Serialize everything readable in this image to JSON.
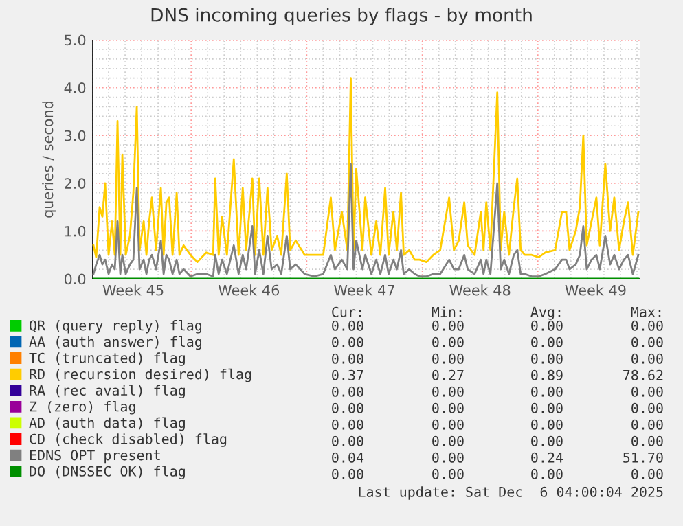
{
  "chart_data": {
    "type": "line",
    "title": "DNS incoming queries by flags - by month",
    "ylabel": "queries / second",
    "x": [
      "2025-11-04T02:00",
      "2025-11-04T06:00",
      "2025-11-04T11:00",
      "2025-11-04T15:00",
      "2025-11-04T19:00",
      "2025-11-05T00:00",
      "2025-11-05T05:00",
      "2025-11-05T09:00",
      "2025-11-05T13:00",
      "2025-11-05T17:00",
      "2025-11-05T20:00",
      "2025-11-06T01:00",
      "2025-11-06T07:00",
      "2025-11-06T12:00",
      "2025-11-06T17:00",
      "2025-11-06T21:00",
      "2025-11-07T03:00",
      "2025-11-07T07:00",
      "2025-11-07T11:00",
      "2025-11-07T15:00",
      "2025-11-07T21:00",
      "2025-11-08T04:00",
      "2025-11-08T08:00",
      "2025-11-08T12:00",
      "2025-11-08T16:00",
      "2025-11-08T21:00",
      "2025-11-09T03:00",
      "2025-11-09T07:00",
      "2025-11-09T13:00",
      "2025-11-09T23:00",
      "2025-11-10T09:00",
      "2025-11-10T22:00",
      "2025-11-11T08:00",
      "2025-11-11T11:00",
      "2025-11-11T16:00",
      "2025-11-11T21:00",
      "2025-11-12T04:00",
      "2025-11-12T14:00",
      "2025-11-12T21:00",
      "2025-11-13T03:00",
      "2025-11-13T08:00",
      "2025-11-13T17:00",
      "2025-11-13T21:00",
      "2025-11-14T03:00",
      "2025-11-14T09:00",
      "2025-11-14T15:00",
      "2025-11-14T21:00",
      "2025-11-15T05:00",
      "2025-11-15T11:00",
      "2025-11-15T19:00",
      "2025-11-16T00:00",
      "2025-11-16T08:00",
      "2025-11-16T21:00",
      "2025-11-17T11:00",
      "2025-11-18T00:00",
      "2025-11-18T11:00",
      "2025-11-18T17:00",
      "2025-11-19T03:00",
      "2025-11-19T11:00",
      "2025-11-19T16:00",
      "2025-11-19T20:00",
      "2025-11-20T00:00",
      "2025-11-20T09:00",
      "2025-11-20T13:00",
      "2025-11-20T22:00",
      "2025-11-21T05:00",
      "2025-11-21T11:00",
      "2025-11-21T18:00",
      "2025-11-21T23:00",
      "2025-11-22T06:00",
      "2025-11-22T11:00",
      "2025-11-22T17:00",
      "2025-11-22T21:00",
      "2025-11-23T05:00",
      "2025-11-23T13:00",
      "2025-11-23T20:00",
      "2025-11-24T06:00",
      "2025-11-24T16:00",
      "2025-11-25T02:00",
      "2025-11-25T15:00",
      "2025-11-25T22:00",
      "2025-11-26T05:00",
      "2025-11-26T13:00",
      "2025-11-26T18:00",
      "2025-11-27T04:00",
      "2025-11-27T13:00",
      "2025-11-27T17:00",
      "2025-11-27T21:00",
      "2025-11-28T03:00",
      "2025-11-28T13:00",
      "2025-11-28T18:00",
      "2025-11-28T23:00",
      "2025-11-29T06:00",
      "2025-11-29T13:00",
      "2025-11-29T18:00",
      "2025-11-29T23:00",
      "2025-11-30T05:00",
      "2025-11-30T15:00",
      "2025-12-01T01:00",
      "2025-12-01T11:00",
      "2025-12-02T01:00",
      "2025-12-02T11:00",
      "2025-12-02T17:00",
      "2025-12-02T22:00",
      "2025-12-03T07:00",
      "2025-12-03T13:00",
      "2025-12-03T18:00",
      "2025-12-03T23:00",
      "2025-12-04T06:00",
      "2025-12-04T13:00",
      "2025-12-04T18:00",
      "2025-12-05T02:00",
      "2025-12-05T09:00",
      "2025-12-05T15:00",
      "2025-12-05T22:00",
      "2025-12-06T05:00",
      "2025-12-06T11:00",
      "2025-12-06T18:00",
      "2025-12-07T02:00"
    ],
    "series": [
      {
        "name": "QR (query reply) flag",
        "color": "#00cc00",
        "values": [
          null,
          null,
          null,
          null,
          null,
          null,
          null,
          null,
          null,
          null,
          null,
          null,
          null,
          null,
          null,
          null,
          null,
          null,
          null,
          null,
          null,
          null,
          null,
          null,
          null,
          null,
          null,
          null,
          null,
          null,
          null,
          null,
          null,
          null,
          null,
          null,
          null,
          null,
          null,
          null,
          null,
          null,
          null,
          null,
          null,
          null,
          null,
          null,
          null,
          null,
          null,
          null,
          null,
          null,
          null,
          null,
          null,
          null,
          null,
          null,
          null,
          null,
          null,
          null,
          null,
          null,
          null,
          null,
          null,
          null,
          null,
          null,
          null,
          null,
          null,
          null,
          null,
          null,
          null,
          null,
          null,
          null,
          null,
          null,
          null,
          null,
          null,
          null,
          null,
          null,
          null,
          null,
          null,
          null,
          null,
          null,
          null,
          null,
          null,
          null,
          null,
          null,
          null,
          null,
          null,
          null,
          null,
          null,
          null,
          null,
          null,
          null,
          null,
          null,
          null,
          null,
          null,
          null,
          null
        ]
      },
      {
        "name": "AA (auth answer) flag",
        "color": "#0066b3",
        "values": [
          null,
          null,
          null,
          null,
          null,
          null,
          null,
          null,
          null,
          null,
          null,
          null,
          null,
          null,
          null,
          null,
          null,
          null,
          null,
          null,
          null,
          null,
          null,
          null,
          null,
          null,
          null,
          null,
          null,
          null,
          null,
          null,
          null,
          null,
          null,
          null,
          null,
          null,
          null,
          null,
          null,
          null,
          null,
          null,
          null,
          null,
          null,
          null,
          null,
          null,
          null,
          null,
          null,
          null,
          null,
          null,
          null,
          null,
          null,
          null,
          null,
          null,
          null,
          null,
          null,
          null,
          null,
          null,
          null,
          null,
          null,
          null,
          null,
          null,
          null,
          null,
          null,
          null,
          null,
          null,
          null,
          null,
          null,
          null,
          null,
          null,
          null,
          null,
          null,
          null,
          null,
          null,
          null,
          null,
          null,
          null,
          null,
          null,
          null,
          null,
          null,
          null,
          null,
          null,
          null,
          null,
          null,
          null,
          null,
          null,
          null,
          null,
          null,
          null,
          null,
          null,
          null,
          null,
          null
        ]
      },
      {
        "name": "TC (truncated) flag",
        "color": "#ff8000",
        "values": [
          null,
          null,
          null,
          null,
          null,
          null,
          null,
          null,
          null,
          null,
          null,
          null,
          null,
          null,
          null,
          null,
          null,
          null,
          null,
          null,
          null,
          null,
          null,
          null,
          null,
          null,
          null,
          null,
          null,
          null,
          null,
          null,
          null,
          null,
          null,
          null,
          null,
          null,
          null,
          null,
          null,
          null,
          null,
          null,
          null,
          null,
          null,
          null,
          null,
          null,
          null,
          null,
          null,
          null,
          null,
          null,
          null,
          null,
          null,
          null,
          null,
          null,
          null,
          null,
          null,
          null,
          null,
          null,
          null,
          null,
          null,
          null,
          null,
          null,
          null,
          null,
          null,
          null,
          null,
          null,
          null,
          null,
          null,
          null,
          null,
          null,
          null,
          null,
          null,
          null,
          null,
          null,
          null,
          null,
          null,
          null,
          null,
          null,
          null,
          null,
          null,
          null,
          null,
          null,
          null,
          null,
          null,
          null,
          null,
          null,
          null,
          null,
          null,
          null,
          null,
          null,
          null,
          null,
          null
        ]
      },
      {
        "name": "RD (recursion desired) flag",
        "color": "#ffcc00",
        "values": [
          0.7,
          0.45,
          1.5,
          1.3,
          2.0,
          0.5,
          1.2,
          0.5,
          3.3,
          0.5,
          2.6,
          0.5,
          0.9,
          1.8,
          3.6,
          0.6,
          1.2,
          0.5,
          1.2,
          1.7,
          0.6,
          1.9,
          0.5,
          1.6,
          1.7,
          0.5,
          1.8,
          0.5,
          0.7,
          0.5,
          0.35,
          0.55,
          0.5,
          2.1,
          0.5,
          1.3,
          0.5,
          2.5,
          0.5,
          1.9,
          0.6,
          2.1,
          0.5,
          2.1,
          0.5,
          1.9,
          0.6,
          0.9,
          0.5,
          2.2,
          0.6,
          0.8,
          0.5,
          0.5,
          0.5,
          1.7,
          0.6,
          1.4,
          0.6,
          4.2,
          0.6,
          2.3,
          0.6,
          1.7,
          0.5,
          1.2,
          0.5,
          1.9,
          0.5,
          1.4,
          0.6,
          1.8,
          0.5,
          0.6,
          0.4,
          0.4,
          0.35,
          0.5,
          0.6,
          1.7,
          0.6,
          0.8,
          1.6,
          0.7,
          0.5,
          1.4,
          0.6,
          1.6,
          0.6,
          3.9,
          0.6,
          1.4,
          0.5,
          1.5,
          2.1,
          0.6,
          0.5,
          0.5,
          0.45,
          0.55,
          0.6,
          1.4,
          1.4,
          0.6,
          1.0,
          1.5,
          3.0,
          0.7,
          1.2,
          1.7,
          0.7,
          2.4,
          1.0,
          1.7,
          0.6,
          1.2,
          1.6,
          0.5,
          1.4
        ]
      },
      {
        "name": "RA (rec avail) flag",
        "color": "#330099",
        "values": [
          null,
          null,
          null,
          null,
          null,
          null,
          null,
          null,
          null,
          null,
          null,
          null,
          null,
          null,
          null,
          null,
          null,
          null,
          null,
          null,
          null,
          null,
          null,
          null,
          null,
          null,
          null,
          null,
          null,
          null,
          null,
          null,
          null,
          null,
          null,
          null,
          null,
          null,
          null,
          null,
          null,
          null,
          null,
          null,
          null,
          null,
          null,
          null,
          null,
          null,
          null,
          null,
          null,
          null,
          null,
          null,
          null,
          null,
          null,
          null,
          null,
          null,
          null,
          null,
          null,
          null,
          null,
          null,
          null,
          null,
          null,
          null,
          null,
          null,
          null,
          null,
          null,
          null,
          null,
          null,
          null,
          null,
          null,
          null,
          null,
          null,
          null,
          null,
          null,
          null,
          null,
          null,
          null,
          null,
          null,
          null,
          null,
          null,
          null,
          null,
          null,
          null,
          null,
          null,
          null,
          null,
          null,
          null,
          null,
          null,
          null,
          null,
          null,
          null,
          null,
          null,
          null,
          null,
          null
        ]
      },
      {
        "name": "Z (zero) flag",
        "color": "#990099",
        "values": [
          null,
          null,
          null,
          null,
          null,
          null,
          null,
          null,
          null,
          null,
          null,
          null,
          null,
          null,
          null,
          null,
          null,
          null,
          null,
          null,
          null,
          null,
          null,
          null,
          null,
          null,
          null,
          null,
          null,
          null,
          null,
          null,
          null,
          null,
          null,
          null,
          null,
          null,
          null,
          null,
          null,
          null,
          null,
          null,
          null,
          null,
          null,
          null,
          null,
          null,
          null,
          null,
          null,
          null,
          null,
          null,
          null,
          null,
          null,
          null,
          null,
          null,
          null,
          null,
          null,
          null,
          null,
          null,
          null,
          null,
          null,
          null,
          null,
          null,
          null,
          null,
          null,
          null,
          null,
          null,
          null,
          null,
          null,
          null,
          null,
          null,
          null,
          null,
          null,
          null,
          null,
          null,
          null,
          null,
          null,
          null,
          null,
          null,
          null,
          null,
          null,
          null,
          null,
          null,
          null,
          null,
          null,
          null,
          null,
          null,
          null,
          null,
          null,
          null,
          null,
          null,
          null,
          null,
          null
        ]
      },
      {
        "name": "AD (auth data) flag",
        "color": "#ccff00",
        "values": [
          null,
          null,
          null,
          null,
          null,
          null,
          null,
          null,
          null,
          null,
          null,
          null,
          null,
          null,
          null,
          null,
          null,
          null,
          null,
          null,
          null,
          null,
          null,
          null,
          null,
          null,
          null,
          null,
          null,
          null,
          null,
          null,
          null,
          null,
          null,
          null,
          null,
          null,
          null,
          null,
          null,
          null,
          null,
          null,
          null,
          null,
          null,
          null,
          null,
          null,
          null,
          null,
          null,
          null,
          null,
          null,
          null,
          null,
          null,
          null,
          null,
          null,
          null,
          null,
          null,
          null,
          null,
          null,
          null,
          null,
          null,
          null,
          null,
          null,
          null,
          null,
          null,
          null,
          null,
          null,
          null,
          null,
          null,
          null,
          null,
          null,
          null,
          null,
          null,
          null,
          null,
          null,
          null,
          null,
          null,
          null,
          null,
          null,
          null,
          null,
          null,
          null,
          null,
          null,
          null,
          null,
          null,
          null,
          null,
          null,
          null,
          null,
          null,
          null,
          null,
          null,
          null,
          null,
          null
        ]
      },
      {
        "name": "CD (check disabled) flag",
        "color": "#ff0000",
        "values": [
          null,
          null,
          null,
          null,
          null,
          null,
          null,
          null,
          null,
          null,
          null,
          null,
          null,
          null,
          null,
          null,
          null,
          null,
          null,
          null,
          null,
          null,
          null,
          null,
          null,
          null,
          null,
          null,
          null,
          null,
          null,
          null,
          null,
          null,
          null,
          null,
          null,
          null,
          null,
          null,
          null,
          null,
          null,
          null,
          null,
          null,
          null,
          null,
          null,
          null,
          null,
          null,
          null,
          null,
          null,
          null,
          null,
          null,
          null,
          null,
          null,
          null,
          null,
          null,
          null,
          null,
          null,
          null,
          null,
          null,
          null,
          null,
          null,
          null,
          null,
          null,
          null,
          null,
          null,
          null,
          null,
          null,
          null,
          null,
          null,
          null,
          null,
          null,
          null,
          null,
          null,
          null,
          null,
          null,
          null,
          null,
          null,
          null,
          null,
          null,
          null,
          null,
          null,
          null,
          null,
          null,
          null,
          null,
          null,
          null,
          null,
          null,
          null,
          null,
          null,
          null,
          null,
          null,
          null
        ]
      },
      {
        "name": "EDNS OPT present",
        "color": "#808080",
        "values": [
          0.1,
          0.3,
          0.5,
          0.3,
          0.4,
          0.1,
          0.3,
          0.2,
          1.2,
          0.1,
          0.5,
          0.1,
          0.3,
          0.4,
          1.9,
          0.2,
          0.4,
          0.1,
          0.4,
          0.5,
          0.2,
          0.8,
          0.1,
          0.5,
          0.4,
          0.1,
          0.4,
          0.1,
          0.2,
          0.05,
          0.1,
          0.1,
          0.05,
          0.5,
          0.1,
          0.4,
          0.1,
          0.7,
          0.1,
          0.5,
          0.2,
          1.1,
          0.1,
          0.6,
          0.1,
          0.9,
          0.2,
          0.3,
          0.1,
          0.9,
          0.2,
          0.3,
          0.1,
          0.05,
          0.1,
          0.5,
          0.2,
          0.4,
          0.2,
          2.4,
          0.2,
          0.8,
          0.2,
          0.5,
          0.1,
          0.4,
          0.1,
          0.5,
          0.1,
          0.4,
          0.2,
          0.6,
          0.1,
          0.2,
          0.1,
          0.05,
          0.05,
          0.1,
          0.1,
          0.4,
          0.2,
          0.2,
          0.5,
          0.2,
          0.1,
          0.4,
          0.1,
          0.4,
          0.1,
          2.0,
          0.2,
          0.4,
          0.1,
          0.5,
          0.6,
          0.1,
          0.1,
          0.05,
          0.05,
          0.1,
          0.2,
          0.4,
          0.4,
          0.2,
          0.3,
          0.5,
          1.1,
          0.2,
          0.4,
          0.5,
          0.2,
          0.9,
          0.3,
          0.5,
          0.2,
          0.4,
          0.5,
          0.1,
          0.5
        ]
      },
      {
        "name": "DO (DNSSEC OK) flag",
        "color": "#008f00",
        "values": [
          0,
          0,
          0,
          0,
          0,
          0,
          0,
          0,
          0,
          0,
          0,
          0,
          0,
          0,
          0,
          0,
          0,
          0,
          0,
          0,
          0,
          0,
          0,
          0,
          0,
          0,
          0,
          0,
          0,
          0,
          0,
          0,
          0,
          0,
          0,
          0,
          0,
          0,
          0,
          0,
          0,
          0,
          0,
          0,
          0,
          0,
          0,
          0,
          0,
          0,
          0,
          0,
          0,
          0,
          0,
          0,
          0,
          0,
          0,
          0,
          0,
          0,
          0,
          0,
          0,
          0,
          0,
          0,
          0,
          0,
          0,
          0,
          0,
          0,
          0,
          0,
          0,
          0,
          0,
          0,
          0,
          0,
          0,
          0,
          0,
          0,
          0,
          0,
          0,
          0,
          0,
          0,
          0,
          0,
          0,
          0,
          0,
          0,
          0,
          0,
          0,
          0,
          0,
          0,
          0,
          0,
          0,
          0,
          0,
          0,
          0,
          0,
          0,
          0,
          0,
          0,
          0,
          0,
          0
        ]
      }
    ],
    "xlim": [
      "2025-11-04T00:00",
      "2025-12-07T05:00"
    ],
    "xticks": [
      {
        "value": "2025-11-06T12:00",
        "label": "Week 45"
      },
      {
        "value": "2025-11-13T12:00",
        "label": "Week 46"
      },
      {
        "value": "2025-11-20T12:00",
        "label": "Week 47"
      },
      {
        "value": "2025-11-27T12:00",
        "label": "Week 48"
      },
      {
        "value": "2025-12-04T12:00",
        "label": "Week 49"
      }
    ],
    "ylim": [
      0,
      5
    ],
    "yticks": [
      {
        "value": 0,
        "label": "0.0"
      },
      {
        "value": 1,
        "label": "1.0"
      },
      {
        "value": 2,
        "label": "2.0"
      },
      {
        "value": 3,
        "label": "3.0"
      },
      {
        "value": 4,
        "label": "4.0"
      },
      {
        "value": 5,
        "label": "5.0"
      }
    ],
    "grid": true,
    "legend": "bottom",
    "marker": "none",
    "line_style": "solid",
    "annotations": [
      "Cur:",
      "Min:",
      "Avg:",
      "Max:",
      "0.00",
      "0.00",
      "0.00",
      "0.00",
      "0.00",
      "0.00",
      "0.00",
      "0.00",
      "0.00",
      "0.00",
      "0.00",
      "0.00",
      "0.37",
      "0.27",
      "0.89",
      "78.62",
      "0.00",
      "0.00",
      "0.00",
      "0.00",
      "0.00",
      "0.00",
      "0.00",
      "0.00",
      "0.00",
      "0.00",
      "0.00",
      "0.00",
      "0.00",
      "0.00",
      "0.00",
      "0.00",
      "0.04",
      "0.00",
      "0.24",
      "51.70",
      "0.00",
      "0.00",
      "0.00",
      "0.00",
      "Last update: Sat Dec  6 04:00:04 2025"
    ]
  }
}
